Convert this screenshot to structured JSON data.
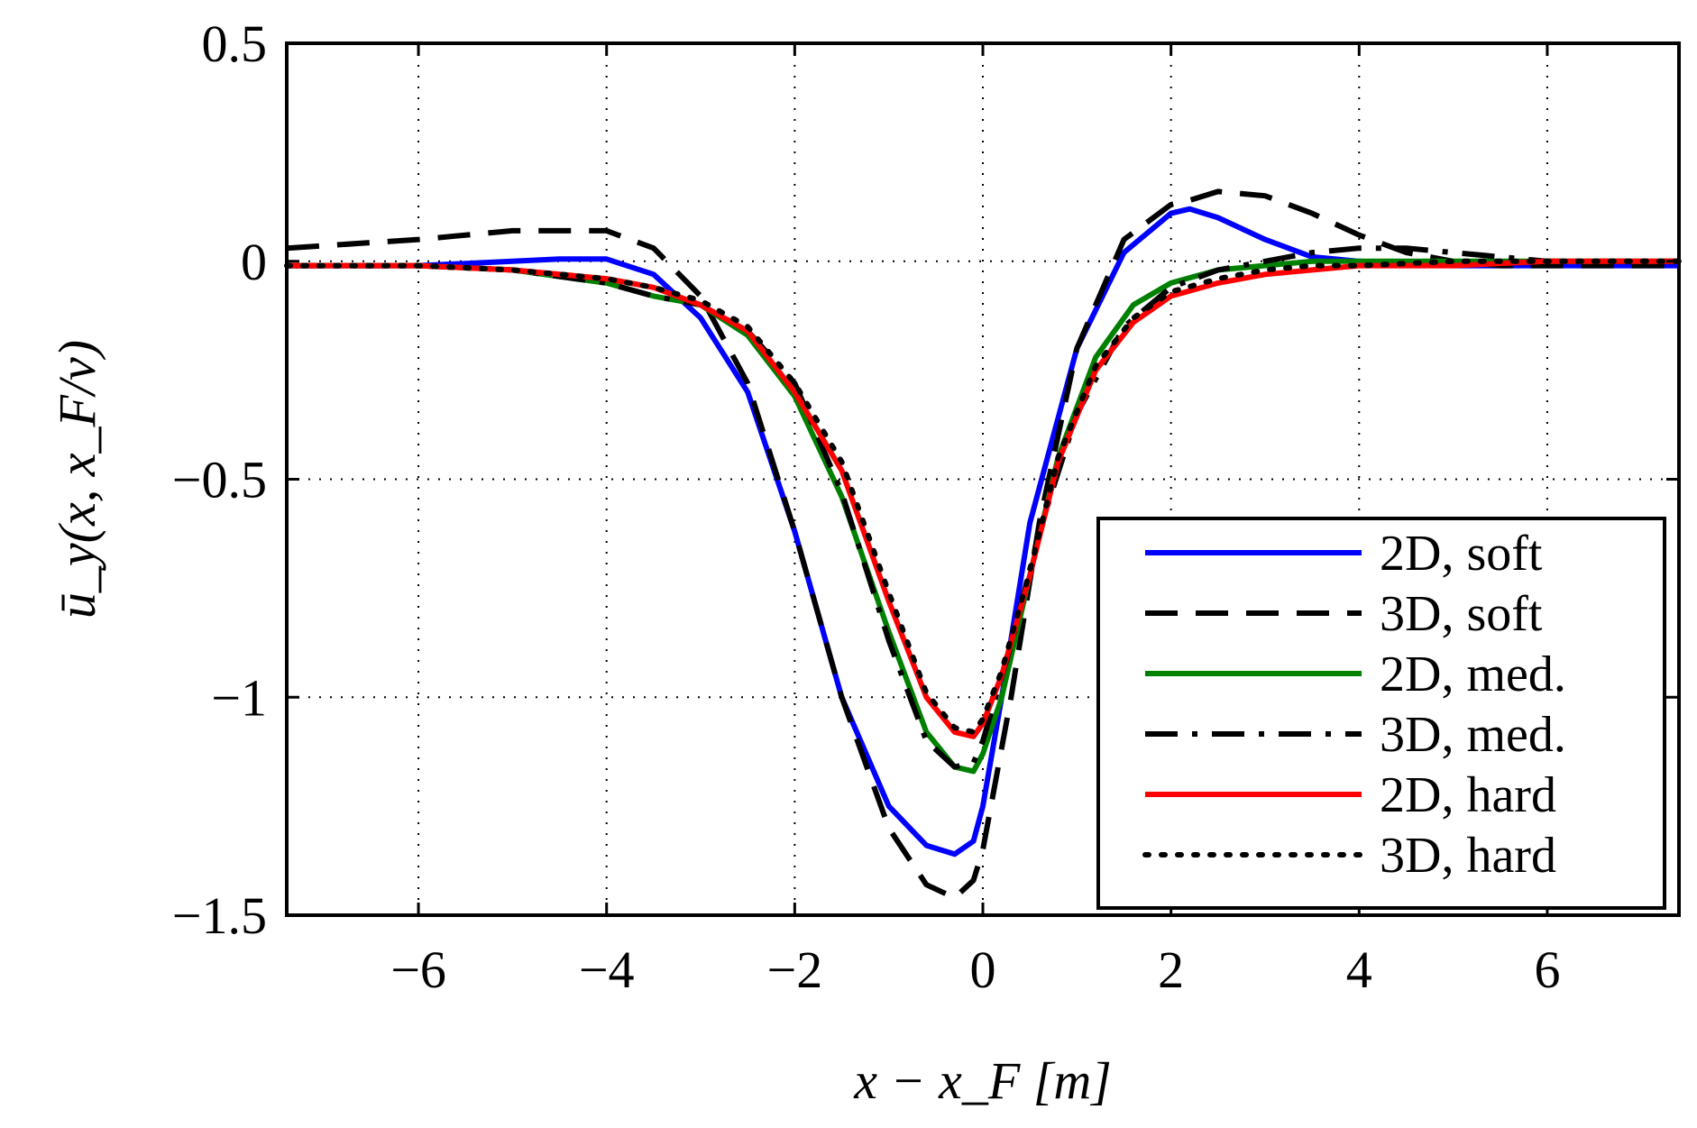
{
  "chart_data": {
    "type": "line",
    "title": "",
    "xlabel": "x − x_F [m]",
    "ylabel": "ū_y(x, x_F/v)",
    "xlim": [
      -7.4,
      7.4
    ],
    "ylim": [
      -1.5,
      0.5
    ],
    "xticks": [
      -6,
      -4,
      -2,
      0,
      2,
      4,
      6
    ],
    "xtick_labels": [
      "−6",
      "−4",
      "−2",
      "0",
      "2",
      "4",
      "6"
    ],
    "yticks": [
      0.5,
      0,
      -0.5,
      -1,
      -1.5
    ],
    "ytick_labels": [
      "0.5",
      "0",
      "−0.5",
      "−1",
      "−1.5"
    ],
    "grid": true,
    "legend_position": "lower-right",
    "series": [
      {
        "name": "2D, soft",
        "color": "#0000ff",
        "style": "solid",
        "x": [
          -7.4,
          -6,
          -5,
          -4.5,
          -4,
          -3.5,
          -3,
          -2.5,
          -2,
          -1.5,
          -1,
          -0.6,
          -0.3,
          -0.1,
          0,
          0.2,
          0.5,
          1,
          1.5,
          2,
          2.2,
          2.5,
          3,
          3.5,
          4,
          5,
          6,
          7.4
        ],
        "y": [
          -0.01,
          -0.01,
          0.0,
          0.005,
          0.005,
          -0.03,
          -0.13,
          -0.3,
          -0.62,
          -1.0,
          -1.25,
          -1.34,
          -1.36,
          -1.33,
          -1.25,
          -1.0,
          -0.6,
          -0.2,
          0.02,
          0.11,
          0.12,
          0.1,
          0.05,
          0.01,
          0.0,
          -0.01,
          -0.01,
          -0.01
        ]
      },
      {
        "name": "3D, soft",
        "color": "#000000",
        "style": "dashed",
        "x": [
          -7.4,
          -6,
          -5,
          -4,
          -3.5,
          -3,
          -2.5,
          -2,
          -1.5,
          -1,
          -0.6,
          -0.3,
          -0.1,
          0,
          0.3,
          0.6,
          1,
          1.5,
          2,
          2.2,
          2.5,
          3,
          3.5,
          4,
          4.5,
          5,
          5.5,
          6,
          7.4
        ],
        "y": [
          0.03,
          0.05,
          0.07,
          0.07,
          0.03,
          -0.08,
          -0.28,
          -0.62,
          -1.0,
          -1.3,
          -1.43,
          -1.46,
          -1.42,
          -1.35,
          -1.0,
          -0.6,
          -0.2,
          0.05,
          0.13,
          0.14,
          0.16,
          0.15,
          0.11,
          0.06,
          0.02,
          0.0,
          -0.01,
          -0.01,
          -0.01
        ]
      },
      {
        "name": "2D, med.",
        "color": "#008000",
        "style": "solid",
        "x": [
          -7.4,
          -6,
          -5,
          -4,
          -3.5,
          -3,
          -2.5,
          -2,
          -1.5,
          -1,
          -0.6,
          -0.3,
          -0.1,
          0,
          0.2,
          0.5,
          0.8,
          1.2,
          1.6,
          2,
          2.5,
          3,
          3.5,
          4,
          5,
          6,
          7.4
        ],
        "y": [
          -0.01,
          -0.01,
          -0.02,
          -0.05,
          -0.08,
          -0.1,
          -0.17,
          -0.31,
          -0.54,
          -0.85,
          -1.08,
          -1.16,
          -1.17,
          -1.13,
          -1.0,
          -0.72,
          -0.45,
          -0.22,
          -0.1,
          -0.05,
          -0.02,
          -0.01,
          0.0,
          0.0,
          0.0,
          0.0,
          0.0
        ]
      },
      {
        "name": "3D, med.",
        "color": "#000000",
        "style": "dashdot",
        "x": [
          -7.4,
          -6,
          -5,
          -4,
          -3.5,
          -3,
          -2.5,
          -2,
          -1.5,
          -1,
          -0.6,
          -0.3,
          -0.1,
          0,
          0.3,
          0.6,
          1,
          1.5,
          2,
          2.5,
          3,
          3.5,
          4,
          4.5,
          5,
          5.5,
          6,
          7.4
        ],
        "y": [
          -0.01,
          -0.01,
          -0.02,
          -0.05,
          -0.08,
          -0.1,
          -0.16,
          -0.28,
          -0.53,
          -0.87,
          -1.1,
          -1.16,
          -1.15,
          -1.1,
          -0.88,
          -0.62,
          -0.35,
          -0.15,
          -0.06,
          -0.02,
          0.0,
          0.02,
          0.03,
          0.03,
          0.02,
          0.01,
          0.0,
          0.0
        ]
      },
      {
        "name": "2D, hard",
        "color": "#ff0000",
        "style": "solid",
        "x": [
          -7.4,
          -6,
          -5,
          -4,
          -3.5,
          -3,
          -2.5,
          -2,
          -1.5,
          -1,
          -0.6,
          -0.3,
          -0.1,
          0,
          0.2,
          0.5,
          0.8,
          1.2,
          1.6,
          2,
          2.5,
          3,
          3.5,
          4,
          5,
          6,
          7.4
        ],
        "y": [
          -0.01,
          -0.01,
          -0.02,
          -0.04,
          -0.06,
          -0.1,
          -0.16,
          -0.3,
          -0.48,
          -0.78,
          -1.0,
          -1.08,
          -1.09,
          -1.06,
          -0.95,
          -0.72,
          -0.46,
          -0.25,
          -0.14,
          -0.08,
          -0.05,
          -0.03,
          -0.02,
          -0.01,
          -0.01,
          0.0,
          0.0
        ]
      },
      {
        "name": "3D, hard",
        "color": "#000000",
        "style": "dotted",
        "x": [
          -7.4,
          -6,
          -5,
          -4,
          -3.5,
          -3,
          -2.5,
          -2,
          -1.5,
          -1,
          -0.6,
          -0.3,
          -0.1,
          0,
          0.2,
          0.5,
          0.8,
          1.2,
          1.6,
          2,
          2.5,
          3,
          3.5,
          4,
          5,
          6,
          7.4
        ],
        "y": [
          -0.01,
          -0.01,
          -0.02,
          -0.04,
          -0.06,
          -0.09,
          -0.15,
          -0.28,
          -0.46,
          -0.76,
          -0.99,
          -1.07,
          -1.08,
          -1.05,
          -0.94,
          -0.71,
          -0.45,
          -0.24,
          -0.13,
          -0.07,
          -0.04,
          -0.02,
          -0.01,
          -0.01,
          0.0,
          0.0,
          0.0
        ]
      }
    ]
  }
}
